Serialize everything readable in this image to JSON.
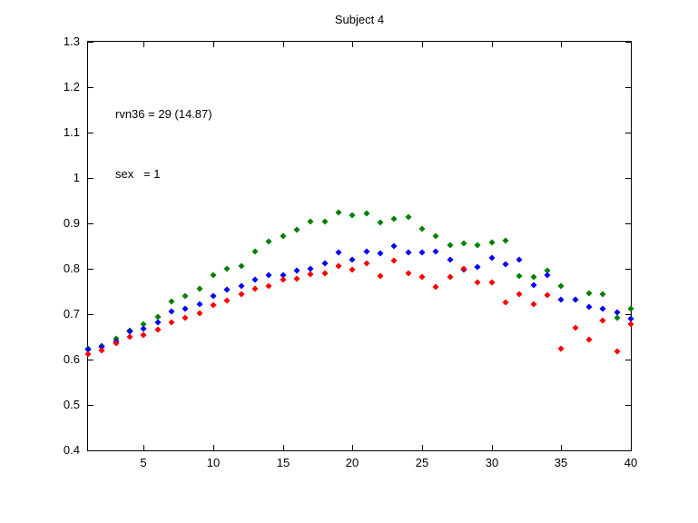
{
  "chart_data": {
    "type": "scatter",
    "title": "Subject 4",
    "annotation": {
      "line1": "rvn36 = 29 (14.87)",
      "line2": "sex   = 1"
    },
    "xlim": [
      1,
      40
    ],
    "ylim": [
      0.4,
      1.3
    ],
    "xtick_values": [
      5,
      10,
      15,
      20,
      25,
      30,
      35,
      40
    ],
    "xtick_labels": [
      "5",
      "10",
      "15",
      "20",
      "25",
      "30",
      "35",
      "40"
    ],
    "ytick_values": [
      0.4,
      0.5,
      0.6,
      0.7,
      0.8,
      0.9,
      1.0,
      1.1,
      1.2,
      1.3
    ],
    "ytick_labels": [
      "0.4",
      "0.5",
      "0.6",
      "0.7",
      "0.8",
      "0.9",
      "1",
      "1.1",
      "1.2",
      "1.3"
    ],
    "grid": false,
    "legend": "none",
    "x": [
      1,
      2,
      3,
      4,
      5,
      6,
      7,
      8,
      9,
      10,
      11,
      12,
      13,
      14,
      15,
      16,
      17,
      18,
      19,
      20,
      21,
      22,
      23,
      24,
      25,
      26,
      27,
      28,
      29,
      30,
      31,
      32,
      33,
      34,
      35,
      36,
      37,
      38,
      39,
      40
    ],
    "series": [
      {
        "name": "green-series",
        "color": "#008000",
        "values": [
          0.625,
          0.631,
          0.646,
          0.665,
          0.679,
          0.694,
          0.728,
          0.741,
          0.756,
          0.786,
          0.801,
          0.807,
          0.838,
          0.86,
          0.872,
          0.886,
          0.905,
          0.904,
          0.925,
          0.918,
          0.922,
          0.903,
          0.911,
          0.915,
          0.888,
          0.873,
          0.852,
          0.856,
          0.852,
          0.858,
          0.862,
          0.785,
          0.782,
          0.796,
          0.763,
          0.733,
          0.747,
          0.744,
          0.692,
          0.712
        ]
      },
      {
        "name": "blue-series",
        "color": "#0000ff",
        "values": [
          0.623,
          0.628,
          0.641,
          0.662,
          0.668,
          0.682,
          0.706,
          0.713,
          0.722,
          0.74,
          0.754,
          0.762,
          0.776,
          0.787,
          0.786,
          0.797,
          0.801,
          0.813,
          0.837,
          0.82,
          0.838,
          0.835,
          0.851,
          0.837,
          0.836,
          0.838,
          0.82,
          0.799,
          0.804,
          0.825,
          0.811,
          0.82,
          0.764,
          0.787,
          0.733,
          0.732,
          0.716,
          0.712,
          0.705,
          0.69
        ]
      },
      {
        "name": "red-series",
        "color": "#ff0000",
        "values": [
          0.613,
          0.62,
          0.636,
          0.65,
          0.654,
          0.667,
          0.682,
          0.693,
          0.702,
          0.72,
          0.73,
          0.744,
          0.756,
          0.762,
          0.776,
          0.778,
          0.788,
          0.79,
          0.806,
          0.798,
          0.812,
          0.784,
          0.818,
          0.79,
          0.782,
          0.76,
          0.783,
          0.8,
          0.771,
          0.77,
          0.727,
          0.744,
          0.722,
          0.743,
          0.625,
          0.671,
          0.645,
          0.687,
          0.618,
          0.678
        ]
      }
    ],
    "axis_color": "#000000",
    "background_color": "#ffffff"
  }
}
